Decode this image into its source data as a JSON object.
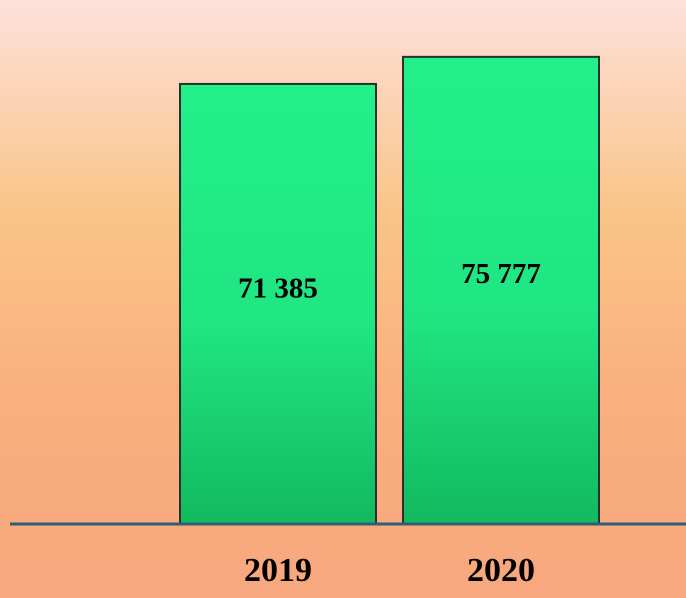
{
  "chart_data": {
    "type": "bar",
    "categories": [
      "2019",
      "2020"
    ],
    "values": [
      71385,
      75777
    ],
    "value_labels": [
      "71 385",
      "75 777"
    ],
    "title": "",
    "xlabel": "",
    "ylabel": "",
    "ylim": [
      0,
      85000
    ],
    "grid": false,
    "legend": "none",
    "bar_color": "#22f08a",
    "bar_color_dark": "#12b95f",
    "bar_edge_color": "#2e2e2e",
    "axis_color": "#2e5f72"
  }
}
